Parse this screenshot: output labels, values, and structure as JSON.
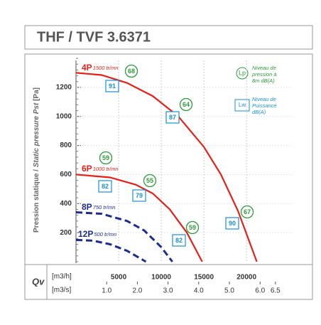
{
  "chart_data": {
    "type": "line",
    "title": "THF / TVF 3.6371",
    "y_label": [
      "Pression statique / ",
      "Static pressure Pst",
      " [Pa]"
    ],
    "x_axis_name": "Qv",
    "x_label": "[m3/h]",
    "x2_label": "[m3/s]",
    "xlim": [
      0,
      25400
    ],
    "xticks": [
      5000,
      10000,
      15000,
      20000
    ],
    "x2lim": [
      0,
      7.06
    ],
    "x2ticks": [
      {
        "value": 1,
        "label": "1.0"
      },
      {
        "value": 2,
        "label": "2.0"
      },
      {
        "value": 3,
        "label": "3.0"
      },
      {
        "value": 4,
        "label": "4.0"
      },
      {
        "value": 5,
        "label": "5.0"
      },
      {
        "value": 6,
        "label": "6.0"
      },
      6.5
    ],
    "ylim": [
      0,
      1400
    ],
    "yticks": [
      200,
      400,
      600,
      800,
      1000,
      1200
    ],
    "grid": true,
    "legend": {
      "lp": "Lp",
      "lp_text": [
        "Niveau de",
        "pression à",
        "8m dB(A)"
      ],
      "lw": "Lw",
      "lw_text": [
        "Niveau de",
        "Puissance",
        "dB(A)"
      ]
    },
    "series": [
      {
        "name": "4P",
        "speed": "1500 tr/mn",
        "color": "#e32119",
        "dashed": false,
        "x": [
          0,
          3000,
          6000,
          9000,
          12000,
          15000,
          17000,
          19000,
          21200
        ],
        "values": [
          1300,
          1285,
          1230,
          1140,
          1000,
          790,
          600,
          350,
          0
        ],
        "lp": [
          68,
          64,
          67
        ],
        "lw": [
          91,
          87,
          90
        ]
      },
      {
        "name": "6P",
        "speed": "1000 tr/mn",
        "color": "#e32119",
        "dashed": false,
        "x": [
          0,
          4000,
          7000,
          9000,
          11000,
          13000,
          14800
        ],
        "values": [
          600,
          580,
          530,
          470,
          360,
          200,
          0
        ],
        "lp": [
          59,
          55,
          59
        ],
        "lw": [
          82,
          79,
          82
        ]
      },
      {
        "name": "8P",
        "speed": "750 tr/mn",
        "color": "#1c2d8c",
        "dashed": true,
        "x": [
          0,
          3000,
          6000,
          8000,
          10000,
          11300
        ],
        "values": [
          340,
          330,
          280,
          215,
          100,
          0
        ]
      },
      {
        "name": "12P",
        "speed": "500 tr/mn",
        "color": "#1c2d8c",
        "dashed": true,
        "x": [
          0,
          2000,
          4000,
          6000,
          8200
        ],
        "values": [
          150,
          145,
          120,
          75,
          0
        ]
      }
    ]
  }
}
